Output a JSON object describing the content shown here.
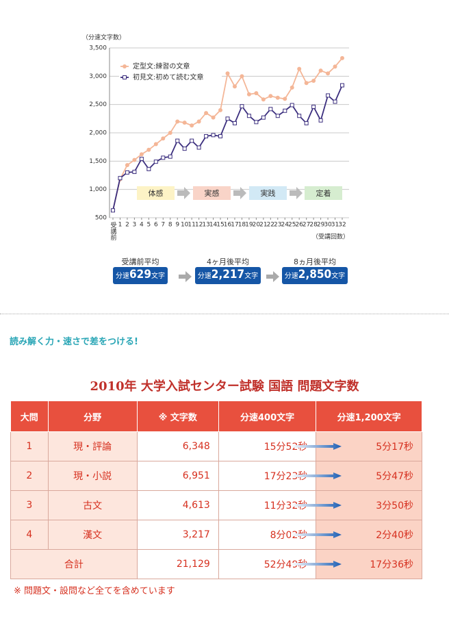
{
  "chart_data": {
    "type": "line",
    "ylabel": "（分速文字数）",
    "xlabel": "（受講回数）",
    "categories": [
      "受講前",
      "1",
      "2",
      "3",
      "4",
      "5",
      "6",
      "7",
      "8",
      "9",
      "10",
      "11",
      "12",
      "13",
      "14",
      "15",
      "16",
      "17",
      "18",
      "19",
      "20",
      "21",
      "22",
      "23",
      "24",
      "25",
      "26",
      "27",
      "28",
      "29",
      "30",
      "31",
      "32"
    ],
    "series": [
      {
        "name": "定型文:練習の文章",
        "color": "#f4b697",
        "marker": "circle",
        "values": [
          630,
          1180,
          1430,
          1520,
          1620,
          1700,
          1800,
          1900,
          2000,
          2200,
          2180,
          2130,
          2200,
          2350,
          2270,
          2400,
          3050,
          2820,
          3000,
          2680,
          2700,
          2590,
          2650,
          2620,
          2600,
          2800,
          3130,
          2880,
          2920,
          3100,
          3050,
          3170,
          3320
        ]
      },
      {
        "name": "初見文:初めて読む文章",
        "color": "#3b2e7e",
        "marker": "square",
        "values": [
          630,
          1200,
          1300,
          1310,
          1540,
          1360,
          1490,
          1560,
          1580,
          1860,
          1720,
          1860,
          1740,
          1940,
          1960,
          1940,
          2250,
          2170,
          2470,
          2300,
          2190,
          2270,
          2420,
          2300,
          2390,
          2490,
          2300,
          2170,
          2460,
          2220,
          2660,
          2550,
          2840
        ]
      }
    ],
    "ylim": [
      500,
      3500
    ],
    "yticks": [
      500,
      {
        "value": 1000,
        "label": "1,000"
      },
      {
        "value": 1500,
        "label": "1,500"
      },
      {
        "value": 2000,
        "label": "2,000"
      },
      {
        "value": 2500,
        "label": "2,500"
      },
      {
        "value": 3000,
        "label": "3,000"
      },
      {
        "value": 3500,
        "label": "3,500"
      }
    ],
    "grid": true,
    "legend": "upper left",
    "stages": [
      "体感",
      "実感",
      "実践",
      "定着"
    ]
  },
  "summary": [
    {
      "label": "受講前平均",
      "prefix": "分速",
      "value": "629",
      "suffix": "文字"
    },
    {
      "label": "4ヶ月後平均",
      "prefix": "分速",
      "value": "2,217",
      "suffix": "文字"
    },
    {
      "label": "8ヵ月後平均",
      "prefix": "分速",
      "value": "2,850",
      "suffix": "文字"
    }
  ],
  "headline": "読み解く力・速さで差をつける!",
  "table": {
    "title": "2010年 大学入試センター試験 国語 問題文字数",
    "header": [
      "大問",
      "分野",
      "※ 文字数",
      "分速400文字",
      "分速1,200文字"
    ],
    "rows": [
      [
        "1",
        "現・評論",
        "6,348",
        "15分52秒",
        "5分17秒"
      ],
      [
        "2",
        "現・小説",
        "6,951",
        "17分23秒",
        "5分47秒"
      ],
      [
        "3",
        "古文",
        "4,613",
        "11分32秒",
        "3分50秒"
      ],
      [
        "4",
        "漢文",
        "3,217",
        "8分02秒",
        "2分40秒"
      ]
    ],
    "total": [
      "合計",
      "21,129",
      "52分49秒",
      "17分36秒"
    ],
    "note": "※ 問題文・設問など全てを含めています"
  }
}
